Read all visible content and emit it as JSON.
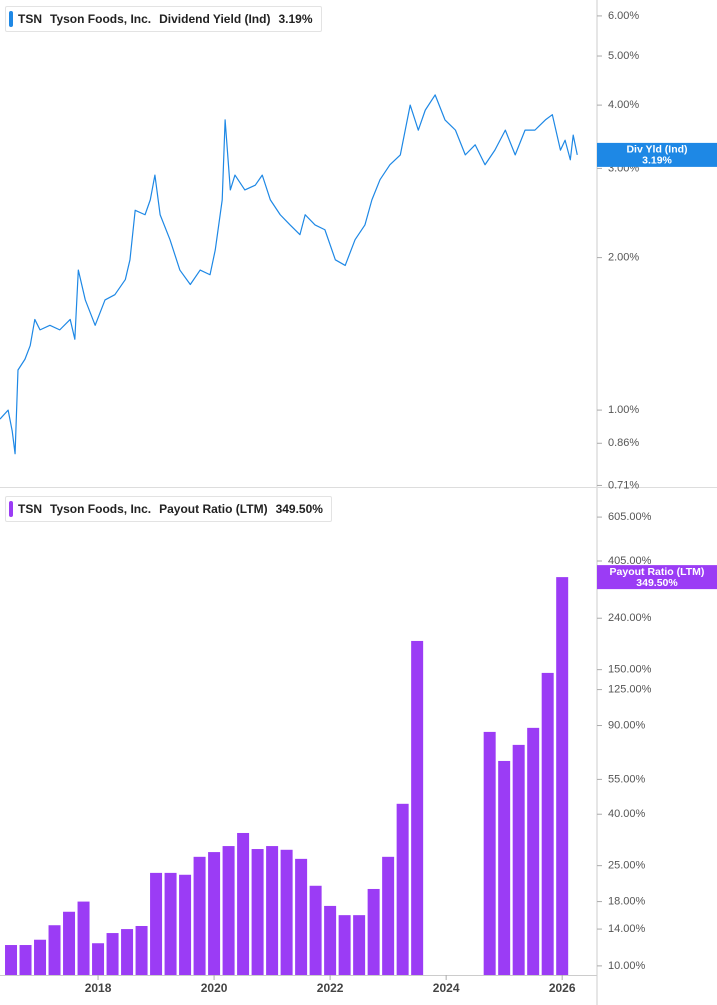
{
  "chart_data": [
    {
      "type": "line",
      "ticker": "TSN",
      "company": "Tyson Foods, Inc.",
      "log_scale": true,
      "xlim": [
        2016.31,
        2026.6
      ],
      "x": [
        2016.31,
        2016.45,
        2016.52,
        2016.57,
        2016.62,
        2016.74,
        2016.83,
        2016.91,
        2017.0,
        2017.17,
        2017.34,
        2017.52,
        2017.6,
        2017.66,
        2017.78,
        2017.95,
        2018.12,
        2018.29,
        2018.47,
        2018.55,
        2018.64,
        2018.81,
        2018.9,
        2018.98,
        2019.07,
        2019.24,
        2019.41,
        2019.59,
        2019.76,
        2019.93,
        2020.02,
        2020.14,
        2020.19,
        2020.28,
        2020.36,
        2020.53,
        2020.71,
        2020.83,
        2020.97,
        2021.14,
        2021.31,
        2021.48,
        2021.57,
        2021.74,
        2021.91,
        2022.09,
        2022.26,
        2022.43,
        2022.6,
        2022.72,
        2022.86,
        2023.03,
        2023.21,
        2023.38,
        2023.52,
        2023.64,
        2023.81,
        2023.98,
        2024.16,
        2024.33,
        2024.5,
        2024.67,
        2024.84,
        2025.02,
        2025.19,
        2025.36,
        2025.53,
        2025.71,
        2025.83,
        2025.97,
        2026.05,
        2026.14,
        2026.19,
        2026.26
      ],
      "ylim": [
        0.705,
        6.45
      ],
      "yticks": [
        {
          "value": 6,
          "label": "6.00%"
        },
        {
          "value": 5,
          "label": "5.00%"
        },
        {
          "value": 4,
          "label": "4.00%"
        },
        {
          "value": 3,
          "label": "3.00%"
        },
        {
          "value": 2,
          "label": "2.00%"
        },
        {
          "value": 1,
          "label": "1.00%"
        },
        {
          "value": 0.86,
          "label": "0.86%"
        },
        {
          "value": 0.71,
          "label": "0.71%"
        }
      ],
      "series": [
        {
          "name": "Dividend Yield (Ind)",
          "tag_name": "Div Yld (Ind)",
          "last_label": "3.19%",
          "color": "#1e88e5",
          "values": [
            0.96,
            1.0,
            0.91,
            0.82,
            1.2,
            1.26,
            1.34,
            1.51,
            1.44,
            1.47,
            1.44,
            1.51,
            1.38,
            1.89,
            1.65,
            1.47,
            1.65,
            1.69,
            1.81,
            1.98,
            2.48,
            2.43,
            2.6,
            2.91,
            2.43,
            2.17,
            1.89,
            1.77,
            1.89,
            1.85,
            2.07,
            2.6,
            3.74,
            2.72,
            2.91,
            2.72,
            2.78,
            2.91,
            2.6,
            2.43,
            2.32,
            2.22,
            2.43,
            2.32,
            2.27,
            1.98,
            1.93,
            2.17,
            2.32,
            2.6,
            2.85,
            3.05,
            3.19,
            4.0,
            3.57,
            3.91,
            4.19,
            3.74,
            3.57,
            3.19,
            3.34,
            3.05,
            3.26,
            3.57,
            3.19,
            3.57,
            3.57,
            3.74,
            3.83,
            3.26,
            3.41,
            3.12,
            3.49,
            3.19
          ]
        }
      ]
    },
    {
      "type": "bar",
      "ticker": "TSN",
      "company": "Tyson Foods, Inc.",
      "log_scale": true,
      "xlim": [
        2016.31,
        2026.6
      ],
      "xticks": [
        2018,
        2020,
        2022,
        2024,
        2026
      ],
      "x": [
        2016.5,
        2016.75,
        2017.0,
        2017.25,
        2017.5,
        2017.75,
        2018.0,
        2018.25,
        2018.5,
        2018.75,
        2019.0,
        2019.25,
        2019.5,
        2019.75,
        2020.0,
        2020.25,
        2020.5,
        2020.75,
        2021.0,
        2021.25,
        2021.5,
        2021.75,
        2022.0,
        2022.25,
        2022.5,
        2022.75,
        2023.0,
        2023.25,
        2023.5,
        2023.75,
        2024.0,
        2024.25,
        2024.5,
        2024.75,
        2025.0,
        2025.25,
        2025.5,
        2025.75,
        2026.0
      ],
      "ylim": [
        9.2,
        775
      ],
      "yticks": [
        {
          "value": 605,
          "label": "605.00%"
        },
        {
          "value": 405,
          "label": "405.00%"
        },
        {
          "value": 240,
          "label": "240.00%"
        },
        {
          "value": 150,
          "label": "150.00%"
        },
        {
          "value": 125,
          "label": "125.00%"
        },
        {
          "value": 90,
          "label": "90.00%"
        },
        {
          "value": 55,
          "label": "55.00%"
        },
        {
          "value": 40,
          "label": "40.00%"
        },
        {
          "value": 25,
          "label": "25.00%"
        },
        {
          "value": 18,
          "label": "18.00%"
        },
        {
          "value": 14,
          "label": "14.00%"
        },
        {
          "value": 10,
          "label": "10.00%"
        }
      ],
      "series": [
        {
          "name": "Payout Ratio (LTM)",
          "tag_name": "Payout Ratio (LTM)",
          "last_label": "349.50%",
          "color": "#9b3cf5",
          "values": [
            12.1,
            12.1,
            12.7,
            14.5,
            16.4,
            18.0,
            12.3,
            13.5,
            14.0,
            14.4,
            23.4,
            23.4,
            23.0,
            27.1,
            28.3,
            29.9,
            33.7,
            29.1,
            29.9,
            28.9,
            26.6,
            20.8,
            17.3,
            15.9,
            15.9,
            20.2,
            27.1,
            44.0,
            195,
            null,
            null,
            null,
            null,
            84.9,
            65.1,
            75.4,
            88.1,
            145.6,
            349.5
          ]
        }
      ]
    }
  ]
}
